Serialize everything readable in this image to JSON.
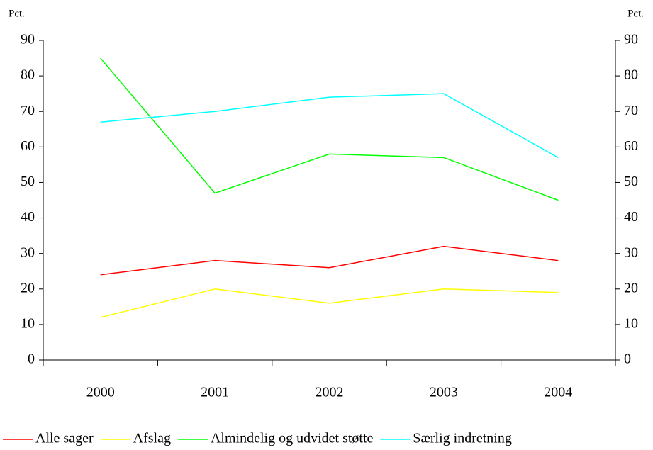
{
  "chart_data": {
    "type": "line",
    "ylabel": "Pct.",
    "y2label": "Pct.",
    "categories": [
      "2000",
      "2001",
      "2002",
      "2003",
      "2004"
    ],
    "series": [
      {
        "name": "Alle sager",
        "color": "#ff0000",
        "values": [
          24,
          28,
          26,
          32,
          28
        ]
      },
      {
        "name": "Afslag",
        "color": "#ffff00",
        "values": [
          12,
          20,
          16,
          20,
          19
        ]
      },
      {
        "name": "Almindelig og udvidet støtte",
        "color": "#00ff00",
        "values": [
          85,
          47,
          58,
          57,
          45
        ]
      },
      {
        "name": "Særlig indretning",
        "color": "#00ffff",
        "values": [
          67,
          70,
          74,
          75,
          57
        ]
      }
    ],
    "ylim": [
      0,
      90
    ],
    "yticks": [
      0,
      10,
      20,
      30,
      40,
      50,
      60,
      70,
      80,
      90
    ],
    "y2lim": [
      0,
      90
    ],
    "y2ticks": [
      0,
      10,
      20,
      30,
      40,
      50,
      60,
      70,
      80,
      90
    ],
    "legend": "bottom"
  }
}
